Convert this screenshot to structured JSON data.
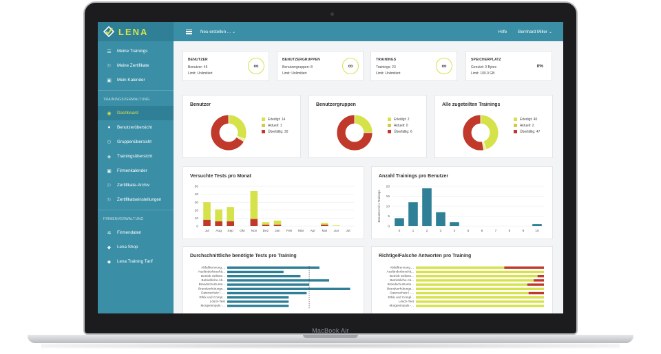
{
  "brand": {
    "logo_text": "LENA",
    "bezel": "MacBook Air"
  },
  "colors": {
    "teal": "#3a8ea6",
    "dark_teal": "#2f7f97",
    "lime": "#d6e24a",
    "red": "#c0392b",
    "bar_blue": "#2f7f97"
  },
  "topbar": {
    "create": "Neu erstellen ...",
    "help": "Hilfe",
    "user": "Bernhard Miller"
  },
  "sidebar": {
    "top_items": [
      {
        "label": "Meine Trainings",
        "icon": "list-icon"
      },
      {
        "label": "Meine Zertifikate",
        "icon": "certificate-icon"
      },
      {
        "label": "Mein Kalender",
        "icon": "calendar-icon"
      }
    ],
    "section1": "TRAININGSVERWALTUNG",
    "admin_items": [
      {
        "label": "Dashboard",
        "icon": "dashboard-icon",
        "active": true
      },
      {
        "label": "Benutzerübersicht",
        "icon": "user-icon"
      },
      {
        "label": "Gruppenübersicht",
        "icon": "group-icon"
      },
      {
        "label": "Trainingsübersicht",
        "icon": "training-icon"
      },
      {
        "label": "Firmenkalender",
        "icon": "calendar-icon"
      },
      {
        "label": "Zertifikate-Archiv",
        "icon": "certificate-icon"
      },
      {
        "label": "Zertifikatseinstellungen",
        "icon": "certificate-settings-icon"
      }
    ],
    "section2": "FIRMENVERWALTUNG",
    "company_items": [
      {
        "label": "Firmendaten",
        "icon": "gear-icon"
      },
      {
        "label": "Lena Shop",
        "icon": "tag-icon"
      },
      {
        "label": "Lena Training Tarif",
        "icon": "tag-icon"
      }
    ]
  },
  "stats": [
    {
      "title": "BENUTZER",
      "line1": "Benutzer: 45",
      "line2": "Limit: Unlimitiert",
      "badge": "∞"
    },
    {
      "title": "BENUTZERGRUPPEN",
      "line1": "Benutzergruppen: 8",
      "line2": "Limit: Unlimitiert",
      "badge": "∞"
    },
    {
      "title": "TRAININGS",
      "line1": "Trainings: 23",
      "line2": "Limit: Unlimitiert",
      "badge": "∞"
    },
    {
      "title": "SPEICHERPLATZ",
      "line1": "Genutzt: 0 Bytes",
      "line2": "Limit: 100.0 GB",
      "percent": "0%"
    }
  ],
  "donuts": [
    {
      "title": "Benutzer",
      "legend": [
        "Erledigt: 14",
        "Aktuell: 1",
        "Überfällig: 30"
      ],
      "values": [
        14,
        1,
        30
      ]
    },
    {
      "title": "Benutzergruppen",
      "legend": [
        "Erledigt: 2",
        "Aktuell: 0",
        "Überfällig: 6"
      ],
      "values": [
        2,
        0,
        6
      ]
    },
    {
      "title": "Alle zugeteilten Trainings",
      "legend": [
        "Erledigt: 40",
        "Aktuell: 2",
        "Überfällig: 47"
      ],
      "values": [
        40,
        2,
        47
      ]
    }
  ],
  "chart_data": [
    {
      "type": "bar",
      "title": "Versuchte Tests pro Monat",
      "categories": [
        "Jul",
        "Aug",
        "Sep",
        "Okt",
        "Nov",
        "Dez",
        "Jan",
        "Feb",
        "Mär",
        "Apr",
        "Mai",
        "Jun",
        "Jul"
      ],
      "series": [
        {
          "values": [
            8,
            6,
            6,
            0,
            9,
            2,
            2,
            0,
            0,
            0,
            2,
            0,
            0
          ]
        },
        {
          "values": [
            22,
            15,
            18,
            0,
            35,
            3,
            5,
            0,
            0,
            0,
            2,
            1,
            0
          ]
        }
      ],
      "stacked": true,
      "ylim": [
        0,
        50
      ],
      "yticks": [
        0,
        10,
        20,
        30,
        40,
        50
      ]
    },
    {
      "type": "bar",
      "title": "Anzahl Trainings pro Benutzer",
      "ylabel": "Benutzer mit x Trainings",
      "categories": [
        "0",
        "1",
        "2",
        "3",
        "4",
        "5",
        "6",
        "7",
        "8",
        "9",
        "10"
      ],
      "values": [
        4,
        12,
        19,
        7,
        2,
        0,
        0,
        0,
        0,
        0,
        1
      ],
      "ylim": [
        0,
        20
      ],
      "yticks": [
        0,
        5,
        10,
        15,
        20
      ]
    },
    {
      "type": "bar",
      "orientation": "horizontal",
      "title": "Durchschnittliche benötigte Tests pro Training",
      "categories": [
        "Abfalltrennung ...",
        "Ausländerbeschä...",
        "Betrieb Selbstn...",
        "Betriebliche Ab...",
        "Brandschutzunte...",
        "Brandverhütungs...",
        "Datenschutz I -...",
        "Ethik und Compl...",
        "Lösch-Test",
        "Morgenimpuls -..."
      ],
      "values": [
        1.8,
        1.1,
        1.43,
        1.99,
        1.6,
        2.4,
        1.55,
        1.2,
        1.2,
        1.2
      ],
      "xlim": [
        0,
        2.5
      ]
    },
    {
      "type": "bar",
      "orientation": "horizontal",
      "stacked": true,
      "title": "Richtige/Falsche Antworten pro Training",
      "categories": [
        "Abfalltrennung ...",
        "Ausländerbeschä...",
        "Betrieb Selbstn...",
        "Betriebliche Ab...",
        "Brandschutzunte...",
        "Brandverhütungs...",
        "Datenschutz I -...",
        "Ethik und Compl...",
        "Lösch-Test",
        "Morgenimpuls -..."
      ],
      "series": [
        {
          "values": [
            0.69,
            1.0,
            0.95,
            0.92,
            0.87,
            1.0,
            0.88,
            1.0,
            1.0,
            1.0
          ]
        },
        {
          "values": [
            0.31,
            0.0,
            0.05,
            0.08,
            0.13,
            0.0,
            0.12,
            0.0,
            0.0,
            0.0
          ]
        }
      ],
      "xlim": [
        0,
        1
      ]
    }
  ]
}
